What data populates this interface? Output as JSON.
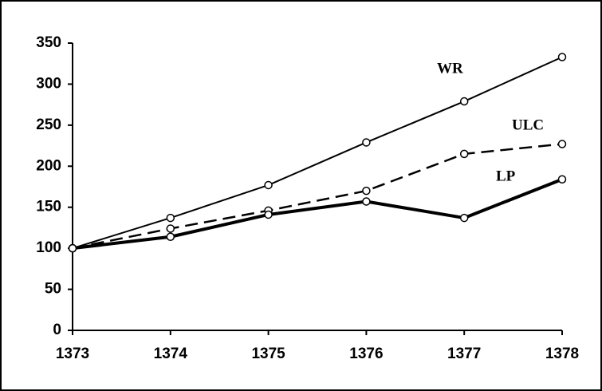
{
  "chart_data": {
    "type": "line",
    "x": [
      1373,
      1374,
      1375,
      1376,
      1377,
      1378
    ],
    "xlim": [
      1373,
      1378
    ],
    "xticks": [
      1373,
      1374,
      1375,
      1376,
      1377,
      1378
    ],
    "ylim": [
      0,
      350
    ],
    "yticks": [
      0,
      50,
      100,
      150,
      200,
      250,
      300,
      350
    ],
    "series": [
      {
        "name": "WR",
        "color": "#000000",
        "dashed": false,
        "width": 2,
        "values": [
          100,
          137,
          177,
          229,
          279,
          333
        ]
      },
      {
        "name": "ULC",
        "color": "#000000",
        "dashed": true,
        "width": 2.5,
        "values": [
          100,
          124,
          146,
          170,
          215,
          227
        ]
      },
      {
        "name": "LP",
        "color": "#000000",
        "dashed": false,
        "width": 4,
        "values": [
          100,
          114,
          141,
          157,
          137,
          184
        ]
      }
    ]
  }
}
